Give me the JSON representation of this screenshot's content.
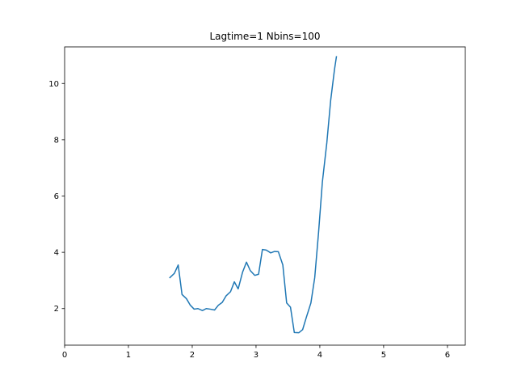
{
  "chart_data": {
    "type": "line",
    "title": "Lagtime=1 Nbins=100",
    "xlabel": "",
    "ylabel": "",
    "xlim": [
      0,
      6.28
    ],
    "ylim": [
      0.7,
      11.3
    ],
    "xticks": [
      0,
      1,
      2,
      3,
      4,
      5,
      6
    ],
    "yticks": [
      2,
      4,
      6,
      8,
      10
    ],
    "grid": false,
    "legend": "none",
    "series": [
      {
        "color": "#1f77b4",
        "x": [
          1.65,
          1.72,
          1.78,
          1.84,
          1.91,
          1.97,
          2.03,
          2.09,
          2.16,
          2.22,
          2.28,
          2.35,
          2.41,
          2.47,
          2.53,
          2.6,
          2.66,
          2.72,
          2.79,
          2.85,
          2.91,
          2.98,
          3.04,
          3.1,
          3.16,
          3.23,
          3.29,
          3.35,
          3.42,
          3.48,
          3.54,
          3.6,
          3.67,
          3.73,
          3.79,
          3.86,
          3.92,
          3.98,
          4.04,
          4.11,
          4.17,
          4.23,
          4.26
        ],
        "y": [
          3.1,
          3.25,
          3.55,
          2.5,
          2.35,
          2.12,
          1.98,
          2.0,
          1.93,
          2.0,
          1.98,
          1.95,
          2.12,
          2.22,
          2.45,
          2.6,
          2.95,
          2.7,
          3.3,
          3.65,
          3.35,
          3.18,
          3.22,
          4.1,
          4.08,
          3.98,
          4.03,
          4.02,
          3.55,
          2.2,
          2.05,
          1.15,
          1.14,
          1.25,
          1.7,
          2.2,
          3.1,
          4.7,
          6.5,
          7.9,
          9.4,
          10.5,
          10.95
        ]
      }
    ]
  }
}
